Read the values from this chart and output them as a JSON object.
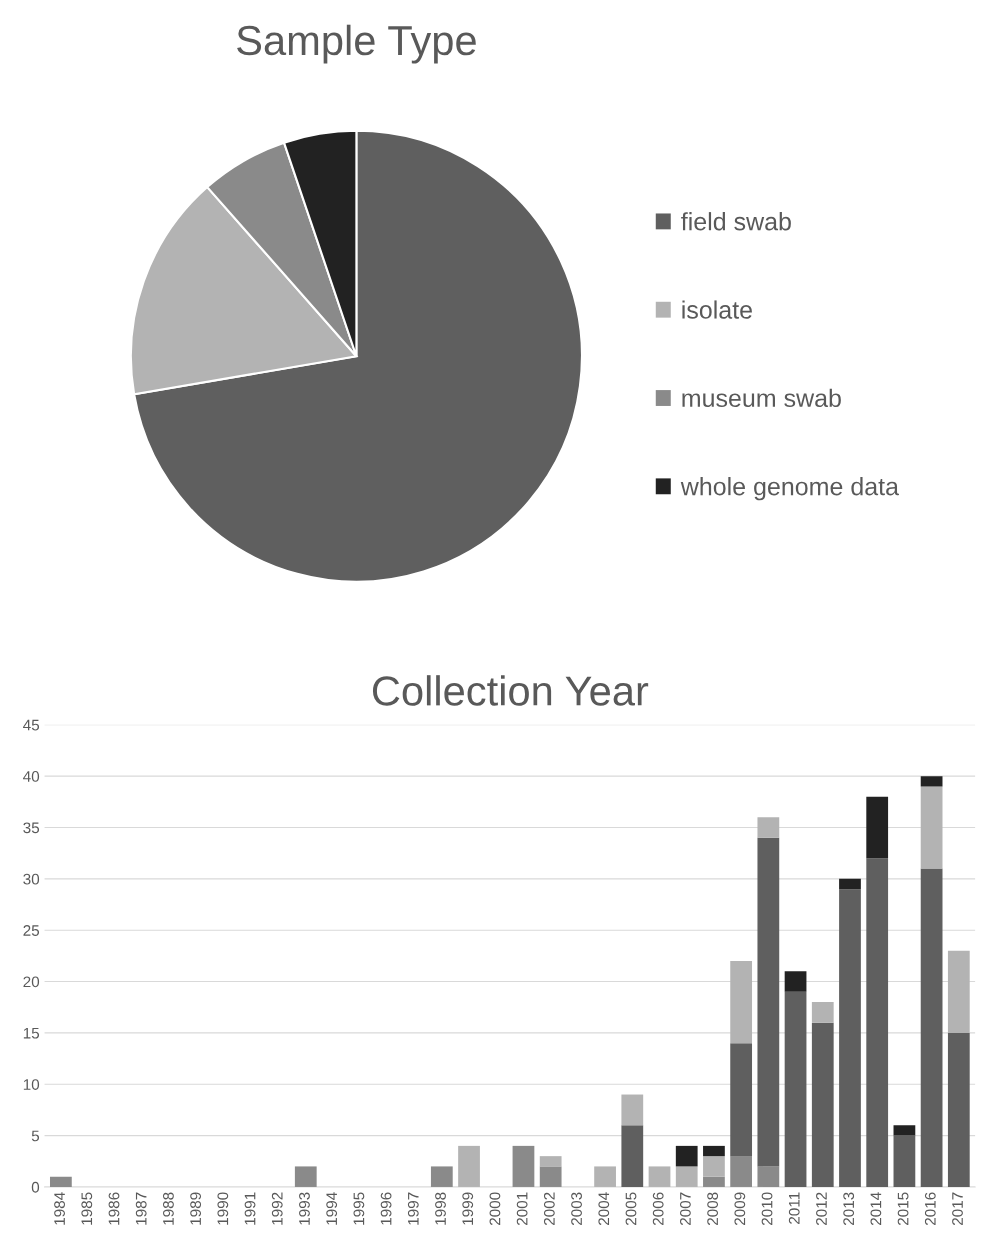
{
  "chart_data": [
    {
      "type": "pie",
      "title": "Sample Type",
      "categories": [
        "field swab",
        "isolate",
        "museum swab",
        "whole genome data"
      ],
      "values": [
        72.3,
        16.2,
        6.3,
        5.2
      ],
      "colors": [
        "#5f5f5f",
        "#b3b3b3",
        "#8a8a8a",
        "#222222"
      ],
      "legend": "right"
    },
    {
      "type": "bar",
      "title": "Collection Year",
      "stacked": true,
      "categories": [
        "1984",
        "1985",
        "1986",
        "1987",
        "1988",
        "1989",
        "1990",
        "1991",
        "1992",
        "1993",
        "1994",
        "1995",
        "1996",
        "1997",
        "1998",
        "1999",
        "2000",
        "2001",
        "2002",
        "2003",
        "2004",
        "2005",
        "2006",
        "2007",
        "2008",
        "2009",
        "2010",
        "2011",
        "2012",
        "2013",
        "2014",
        "2015",
        "2016",
        "2017"
      ],
      "series": [
        {
          "color": "#8a8a8a",
          "values": [
            1,
            0,
            0,
            0,
            0,
            0,
            0,
            0,
            0,
            2,
            0,
            0,
            0,
            0,
            2,
            0,
            0,
            4,
            2,
            0,
            0,
            0,
            0,
            0,
            1,
            3,
            2,
            0,
            0,
            0,
            0,
            0,
            0,
            0
          ]
        },
        {
          "color": "#5f5f5f",
          "values": [
            0,
            0,
            0,
            0,
            0,
            0,
            0,
            0,
            0,
            0,
            0,
            0,
            0,
            0,
            0,
            0,
            0,
            0,
            0,
            0,
            0,
            6,
            0,
            0,
            0,
            11,
            32,
            19,
            16,
            29,
            32,
            5,
            31,
            15
          ]
        },
        {
          "color": "#b3b3b3",
          "values": [
            0,
            0,
            0,
            0,
            0,
            0,
            0,
            0,
            0,
            0,
            0,
            0,
            0,
            0,
            0,
            4,
            0,
            0,
            1,
            0,
            2,
            3,
            2,
            2,
            2,
            8,
            2,
            0,
            2,
            0,
            0,
            0,
            8,
            8
          ]
        },
        {
          "color": "#222222",
          "values": [
            0,
            0,
            0,
            0,
            0,
            0,
            0,
            0,
            0,
            0,
            0,
            0,
            0,
            0,
            0,
            0,
            0,
            0,
            0,
            0,
            0,
            0,
            0,
            2,
            1,
            0,
            0,
            2,
            0,
            1,
            6,
            1,
            1,
            0
          ]
        }
      ],
      "ylim": [
        0,
        45
      ],
      "yticks": [
        0,
        5,
        10,
        15,
        20,
        25,
        30,
        35,
        40,
        45
      ],
      "grid": "y",
      "legend": false
    }
  ]
}
